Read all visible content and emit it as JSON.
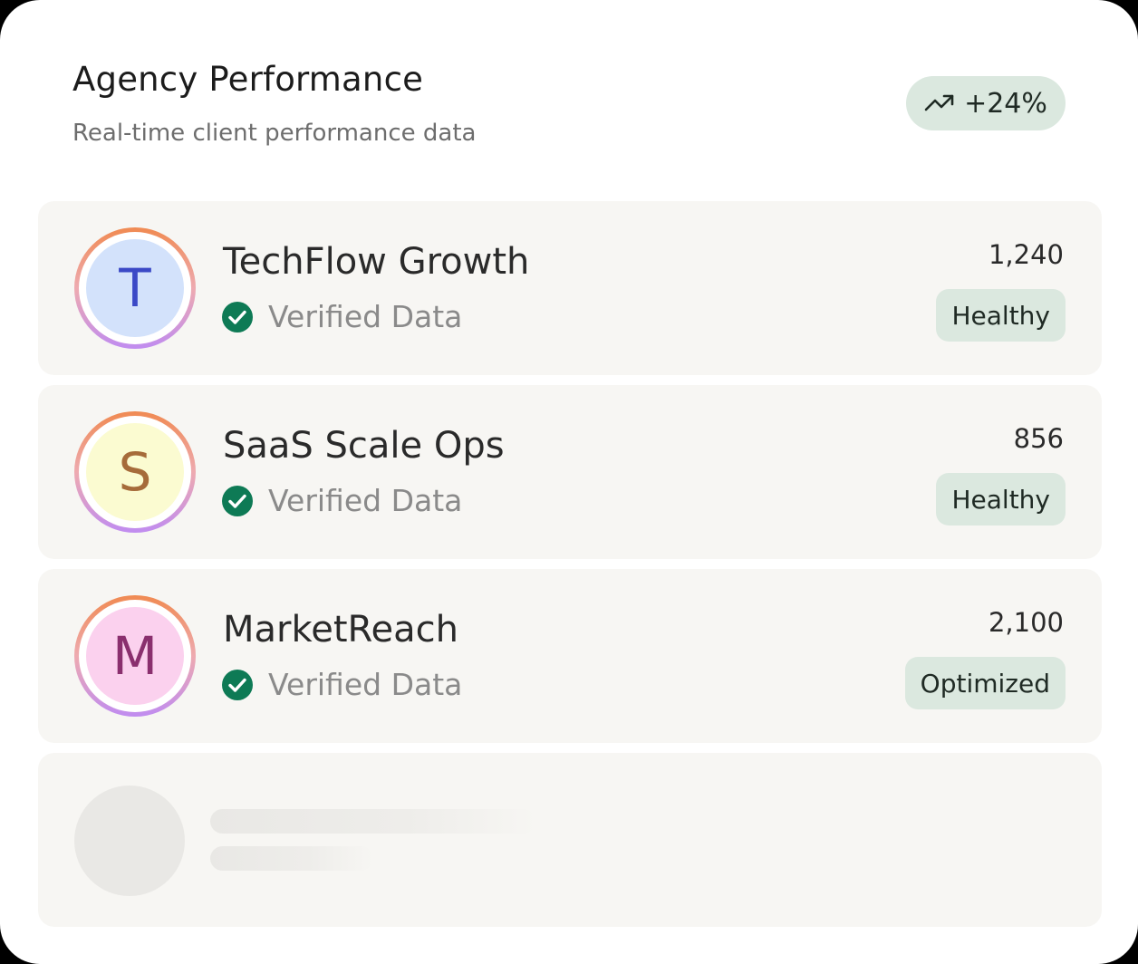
{
  "header": {
    "title": "Agency Performance",
    "subtitle": "Real-time client performance data",
    "trend": {
      "icon": "trending-up-icon",
      "value": "+24%"
    }
  },
  "clients": [
    {
      "initial": "T",
      "name": "TechFlow Growth",
      "verified_label": "Verified Data",
      "metric": "1,240",
      "status": "Healthy",
      "avatar_bg": "#d3e2fb",
      "avatar_fg": "#3b49c6"
    },
    {
      "initial": "S",
      "name": "SaaS Scale Ops",
      "verified_label": "Verified Data",
      "metric": "856",
      "status": "Healthy",
      "avatar_bg": "#fbfbd1",
      "avatar_fg": "#a66b3a"
    },
    {
      "initial": "M",
      "name": "MarketReach",
      "verified_label": "Verified Data",
      "metric": "2,100",
      "status": "Optimized",
      "avatar_bg": "#fbd1ee",
      "avatar_fg": "#8a2f6e"
    }
  ],
  "colors": {
    "badge_bg": "#dbe8df",
    "verified_green": "#0e7a55",
    "row_bg": "#f7f6f3",
    "skeleton": "#e9e8e5"
  }
}
